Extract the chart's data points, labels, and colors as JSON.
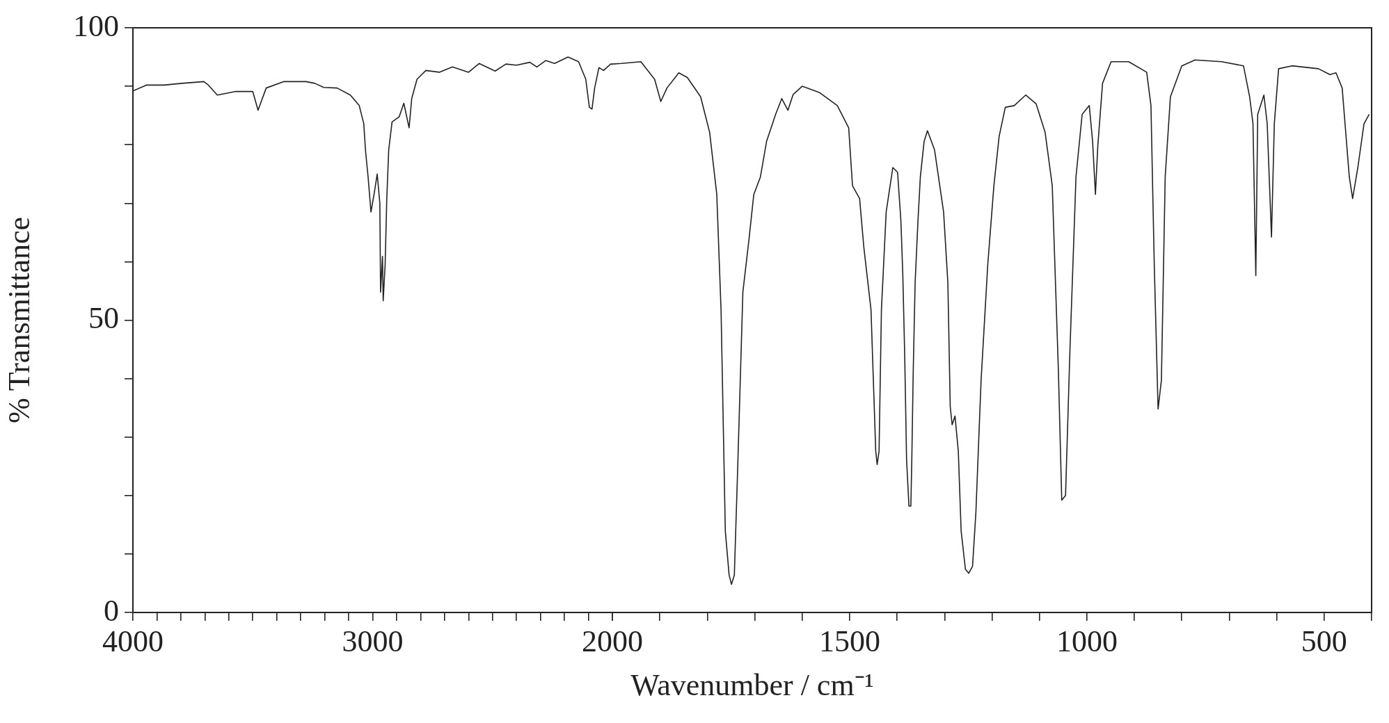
{
  "chart_data": [
    {
      "type": "line",
      "xlabel": "Wavenumber / cm⁻¹",
      "ylabel": "% Transmittance",
      "xlim": [
        4000,
        2000
      ],
      "ylim": [
        0,
        100
      ],
      "xticks": [
        4000,
        {
          "value": 3900,
          "label": null
        },
        {
          "value": 3800,
          "label": null
        },
        {
          "value": 3700,
          "label": null
        },
        {
          "value": 3600,
          "label": null
        },
        {
          "value": 3500,
          "label": null
        },
        {
          "value": 3400,
          "label": null
        },
        {
          "value": 3300,
          "label": null
        },
        {
          "value": 3200,
          "label": null
        },
        {
          "value": 3100,
          "label": null
        },
        3000,
        {
          "value": 2900,
          "label": null
        },
        {
          "value": 2800,
          "label": null
        },
        {
          "value": 2700,
          "label": null
        },
        {
          "value": 2600,
          "label": null
        },
        {
          "value": 2500,
          "label": null
        },
        {
          "value": 2400,
          "label": null
        },
        {
          "value": 2300,
          "label": null
        },
        {
          "value": 2200,
          "label": null
        },
        {
          "value": 2100,
          "label": null
        },
        2000
      ],
      "yticks": [
        0,
        {
          "value": 10,
          "label": null
        },
        {
          "value": 20,
          "label": null
        },
        {
          "value": 30,
          "label": null
        },
        {
          "value": 40,
          "label": null
        },
        50,
        {
          "value": 60,
          "label": null
        },
        {
          "value": 70,
          "label": null
        },
        {
          "value": 80,
          "label": null
        },
        {
          "value": 90,
          "label": null
        },
        100
      ],
      "series": [
        {
          "color": "#222222",
          "x": [
            4000,
            3944,
            3870,
            3796,
            3704,
            3685,
            3648,
            3574,
            3500,
            3478,
            3444,
            3370,
            3278,
            3241,
            3204,
            3148,
            3093,
            3056,
            3037,
            3030,
            3019,
            3007,
            2993,
            2981,
            2970,
            2967,
            2959,
            2956,
            2948,
            2941,
            2933,
            2919,
            2889,
            2870,
            2848,
            2837,
            2815,
            2778,
            2722,
            2667,
            2600,
            2556,
            2489,
            2444,
            2400,
            2344,
            2315,
            2278,
            2241,
            2185,
            2141,
            2111,
            2096,
            2085,
            2074,
            2056,
            2037,
            2007,
            2000
          ],
          "values": [
            89.2,
            90.2,
            90.2,
            90.5,
            90.8,
            90.2,
            88.5,
            89.1,
            89.1,
            85.9,
            89.7,
            90.8,
            90.8,
            90.5,
            89.8,
            89.7,
            88.5,
            86.7,
            83.6,
            79.1,
            74.5,
            68.5,
            71.8,
            75.0,
            70.0,
            54.8,
            60.9,
            53.3,
            59.4,
            70.8,
            79.1,
            83.9,
            84.8,
            87.1,
            82.9,
            87.9,
            91.2,
            92.7,
            92.4,
            93.3,
            92.4,
            93.9,
            92.6,
            93.8,
            93.6,
            94.1,
            93.3,
            94.4,
            93.9,
            95.0,
            94.2,
            91.2,
            86.4,
            86.1,
            89.7,
            93.2,
            92.7,
            93.8,
            93.8
          ]
        }
      ]
    },
    {
      "type": "line",
      "xlim": [
        2000,
        400
      ],
      "ylim": [
        0,
        100
      ],
      "tick_labels": "x",
      "xticks": [
        {
          "value": 2000,
          "label": null
        },
        {
          "value": 1900,
          "label": null
        },
        {
          "value": 1800,
          "label": null
        },
        {
          "value": 1700,
          "label": null
        },
        {
          "value": 1600,
          "label": null
        },
        1500,
        {
          "value": 1400,
          "label": null
        },
        {
          "value": 1300,
          "label": null
        },
        {
          "value": 1200,
          "label": null
        },
        {
          "value": 1100,
          "label": null
        },
        1000,
        {
          "value": 900,
          "label": null
        },
        {
          "value": 800,
          "label": null
        },
        {
          "value": 700,
          "label": null
        },
        {
          "value": 600,
          "label": null
        },
        500,
        {
          "value": 400,
          "label": null
        }
      ],
      "series": [
        {
          "color": "#222222",
          "x": [
            2000,
            1981,
            1940,
            1911,
            1898,
            1885,
            1860,
            1842,
            1814,
            1795,
            1780,
            1771,
            1762,
            1754,
            1749,
            1743,
            1736,
            1725,
            1712,
            1702,
            1688,
            1675,
            1656,
            1643,
            1630,
            1619,
            1600,
            1563,
            1526,
            1502,
            1494,
            1479,
            1470,
            1455,
            1445,
            1442,
            1438,
            1433,
            1423,
            1409,
            1399,
            1392,
            1388,
            1384,
            1380,
            1375,
            1371,
            1369,
            1366,
            1362,
            1356,
            1351,
            1343,
            1336,
            1321,
            1302,
            1293,
            1288,
            1284,
            1278,
            1271,
            1265,
            1256,
            1249,
            1241,
            1234,
            1223,
            1209,
            1196,
            1185,
            1172,
            1153,
            1129,
            1107,
            1088,
            1073,
            1060,
            1053,
            1045,
            1036,
            1023,
            1010,
            995,
            988,
            982,
            977,
            967,
            949,
            912,
            874,
            865,
            858,
            850,
            843,
            835,
            824,
            800,
            772,
            716,
            670,
            657,
            650,
            644,
            640,
            627,
            620,
            611,
            605,
            596,
            568,
            512,
            488,
            475,
            462,
            447,
            440,
            429,
            416,
            405
          ],
          "values": [
            93.8,
            93.9,
            94.2,
            91.2,
            87.4,
            89.7,
            92.3,
            91.5,
            88.2,
            82.1,
            71.5,
            51.8,
            13.9,
            6.4,
            4.8,
            6.4,
            24.5,
            54.8,
            63.9,
            71.5,
            74.5,
            80.6,
            85.2,
            87.9,
            85.9,
            88.6,
            90.0,
            88.9,
            86.7,
            82.9,
            73.0,
            70.8,
            62.4,
            51.8,
            27.6,
            25.3,
            27.6,
            51.8,
            68.5,
            76.1,
            75.3,
            67.0,
            57.9,
            44.2,
            26.1,
            18.2,
            18.2,
            26.1,
            41.2,
            56.4,
            67.0,
            74.5,
            80.6,
            82.4,
            79.1,
            68.5,
            56.4,
            35.2,
            32.1,
            33.6,
            27.6,
            13.9,
            7.4,
            6.7,
            7.9,
            17.0,
            39.7,
            59.4,
            73.0,
            81.4,
            86.4,
            86.7,
            88.5,
            87.0,
            82.1,
            73.0,
            41.2,
            19.2,
            20.0,
            44.2,
            74.5,
            85.2,
            86.7,
            80.6,
            71.5,
            79.8,
            90.5,
            94.2,
            94.2,
            92.4,
            86.7,
            59.4,
            34.8,
            39.7,
            74.5,
            88.2,
            93.5,
            94.5,
            94.2,
            93.5,
            88.2,
            83.6,
            57.6,
            85.2,
            88.5,
            83.6,
            64.2,
            83.6,
            93.0,
            93.5,
            93.0,
            92.0,
            92.3,
            89.7,
            74.5,
            70.8,
            76.1,
            83.6,
            85.2
          ]
        }
      ]
    }
  ]
}
